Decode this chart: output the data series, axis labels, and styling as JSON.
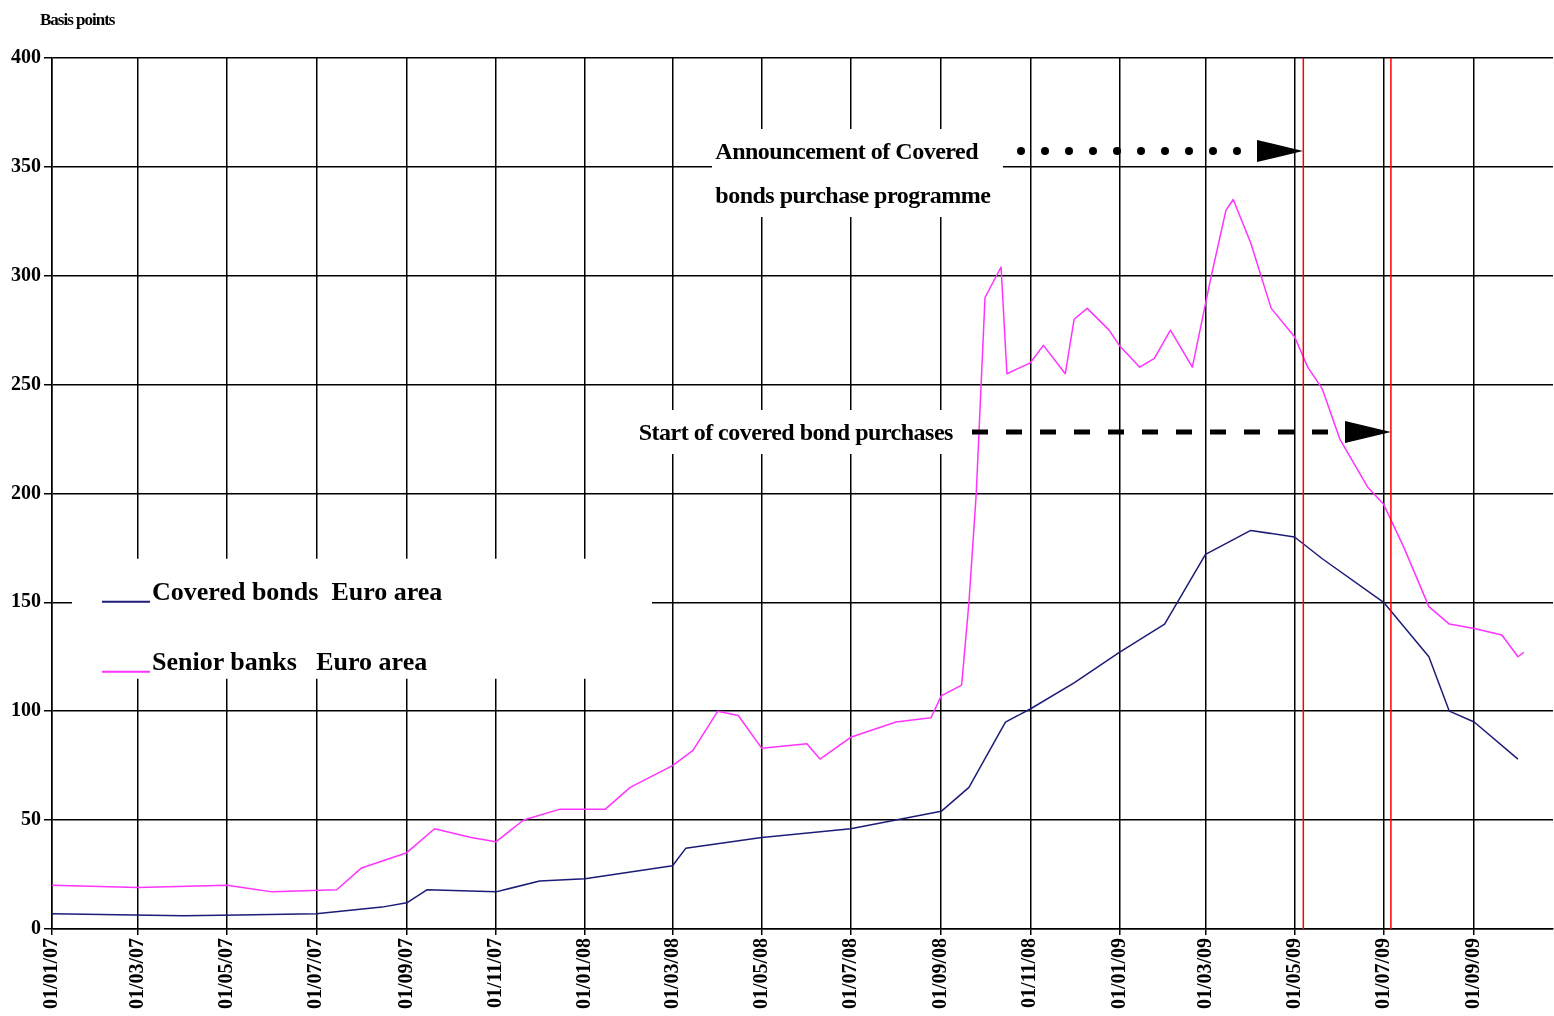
{
  "chart_data": {
    "type": "line",
    "ylabel": "Basis points",
    "xlim": [
      "2007-01-01",
      "2009-10-25"
    ],
    "ylim": [
      0,
      400
    ],
    "yticks": [
      0,
      50,
      100,
      150,
      200,
      250,
      300,
      350,
      400
    ],
    "xticks": [
      {
        "value": "2007-01-01",
        "label": "01/01/07"
      },
      {
        "value": "2007-03-01",
        "label": "01/03/07"
      },
      {
        "value": "2007-05-01",
        "label": "01/05/07"
      },
      {
        "value": "2007-07-01",
        "label": "01/07/07"
      },
      {
        "value": "2007-09-01",
        "label": "01/09/07"
      },
      {
        "value": "2007-11-01",
        "label": "01/11/07"
      },
      {
        "value": "2008-01-01",
        "label": "01/01/08"
      },
      {
        "value": "2008-03-01",
        "label": "01/03/08"
      },
      {
        "value": "2008-05-01",
        "label": "01/05/08"
      },
      {
        "value": "2008-07-01",
        "label": "01/07/08"
      },
      {
        "value": "2008-09-01",
        "label": "01/09/08"
      },
      {
        "value": "2008-11-01",
        "label": "01/11/08"
      },
      {
        "value": "2009-01-01",
        "label": "01/01/09"
      },
      {
        "value": "2009-03-01",
        "label": "01/03/09"
      },
      {
        "value": "2009-05-01",
        "label": "01/05/09"
      },
      {
        "value": "2009-07-01",
        "label": "01/07/09"
      },
      {
        "value": "2009-09-01",
        "label": "01/09/09"
      }
    ],
    "grid": true,
    "legend": "left",
    "marker": "none",
    "line_style": "solid",
    "series": [
      {
        "name": "Covered bonds  Euro area",
        "color": "#1c1c78",
        "x": [
          "2007-01-01",
          "2007-04-01",
          "2007-07-01",
          "2007-08-15",
          "2007-09-01",
          "2007-09-15",
          "2007-11-01",
          "2007-12-01",
          "2008-01-01",
          "2008-03-01",
          "2008-03-10",
          "2008-05-01",
          "2008-07-01",
          "2008-09-01",
          "2008-09-20",
          "2008-10-15",
          "2008-11-01",
          "2008-12-01",
          "2009-01-01",
          "2009-02-01",
          "2009-03-01",
          "2009-04-01",
          "2009-05-01",
          "2009-05-20",
          "2009-07-01",
          "2009-08-01",
          "2009-08-15",
          "2009-09-01",
          "2009-10-01"
        ],
        "values": [
          7,
          6,
          7,
          10,
          12,
          18,
          17,
          22,
          23,
          29,
          37,
          42,
          46,
          54,
          65,
          95,
          101,
          113,
          127,
          140,
          172,
          183,
          180,
          170,
          150,
          125,
          100,
          95,
          78
        ]
      },
      {
        "name": "Senior banks   Euro area",
        "color": "#ff33ff",
        "x": [
          "2007-01-01",
          "2007-03-01",
          "2007-05-01",
          "2007-06-01",
          "2007-07-15",
          "2007-08-01",
          "2007-09-01",
          "2007-09-20",
          "2007-10-15",
          "2007-11-01",
          "2007-11-20",
          "2007-12-15",
          "2008-01-15",
          "2008-02-01",
          "2008-03-01",
          "2008-03-15",
          "2008-04-01",
          "2008-04-15",
          "2008-05-01",
          "2008-06-01",
          "2008-06-10",
          "2008-07-01",
          "2008-08-01",
          "2008-08-25",
          "2008-09-01",
          "2008-09-15",
          "2008-09-20",
          "2008-09-25",
          "2008-10-01",
          "2008-10-12",
          "2008-10-16",
          "2008-11-01",
          "2008-11-10",
          "2008-11-25",
          "2008-12-01",
          "2008-12-10",
          "2008-12-25",
          "2009-01-01",
          "2009-01-15",
          "2009-01-25",
          "2009-02-05",
          "2009-02-20",
          "2009-03-05",
          "2009-03-15",
          "2009-03-20",
          "2009-04-01",
          "2009-04-15",
          "2009-05-01",
          "2009-05-10",
          "2009-05-20",
          "2009-06-01",
          "2009-06-20",
          "2009-07-01",
          "2009-07-15",
          "2009-08-01",
          "2009-08-15",
          "2009-09-01",
          "2009-09-20",
          "2009-10-01",
          "2009-10-05"
        ],
        "values": [
          20,
          19,
          20,
          17,
          18,
          28,
          35,
          46,
          42,
          40,
          50,
          55,
          55,
          65,
          75,
          82,
          100,
          98,
          83,
          85,
          78,
          88,
          95,
          97,
          107,
          112,
          150,
          200,
          290,
          304,
          255,
          260,
          268,
          255,
          280,
          285,
          275,
          268,
          258,
          262,
          275,
          258,
          300,
          330,
          335,
          315,
          285,
          272,
          258,
          248,
          225,
          203,
          195,
          175,
          148,
          140,
          138,
          135,
          125,
          127
        ]
      }
    ],
    "ref_lines": [
      {
        "axis": "x",
        "value": "2009-05-07",
        "color": "#ff0000"
      },
      {
        "axis": "x",
        "value": "2009-07-06",
        "color": "#ff0000"
      }
    ],
    "annotations": [
      "Announcement of Covered bonds purchase programme",
      "Start of covered bond purchases"
    ]
  }
}
